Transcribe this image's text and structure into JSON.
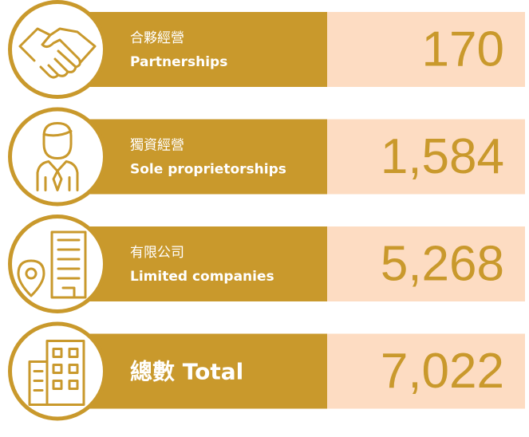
{
  "rows": [
    {
      "label_zh": "合夥經營",
      "label_en": "Partnerships",
      "value": "170"
    },
    {
      "label_zh": "獨資經營",
      "label_en": "Sole proprietorships",
      "value": "1,584"
    },
    {
      "label_zh": "有限公司",
      "label_en": "Limited companies",
      "value": "5,268"
    },
    {
      "label": "總數 Total",
      "value": "7,022"
    }
  ]
}
